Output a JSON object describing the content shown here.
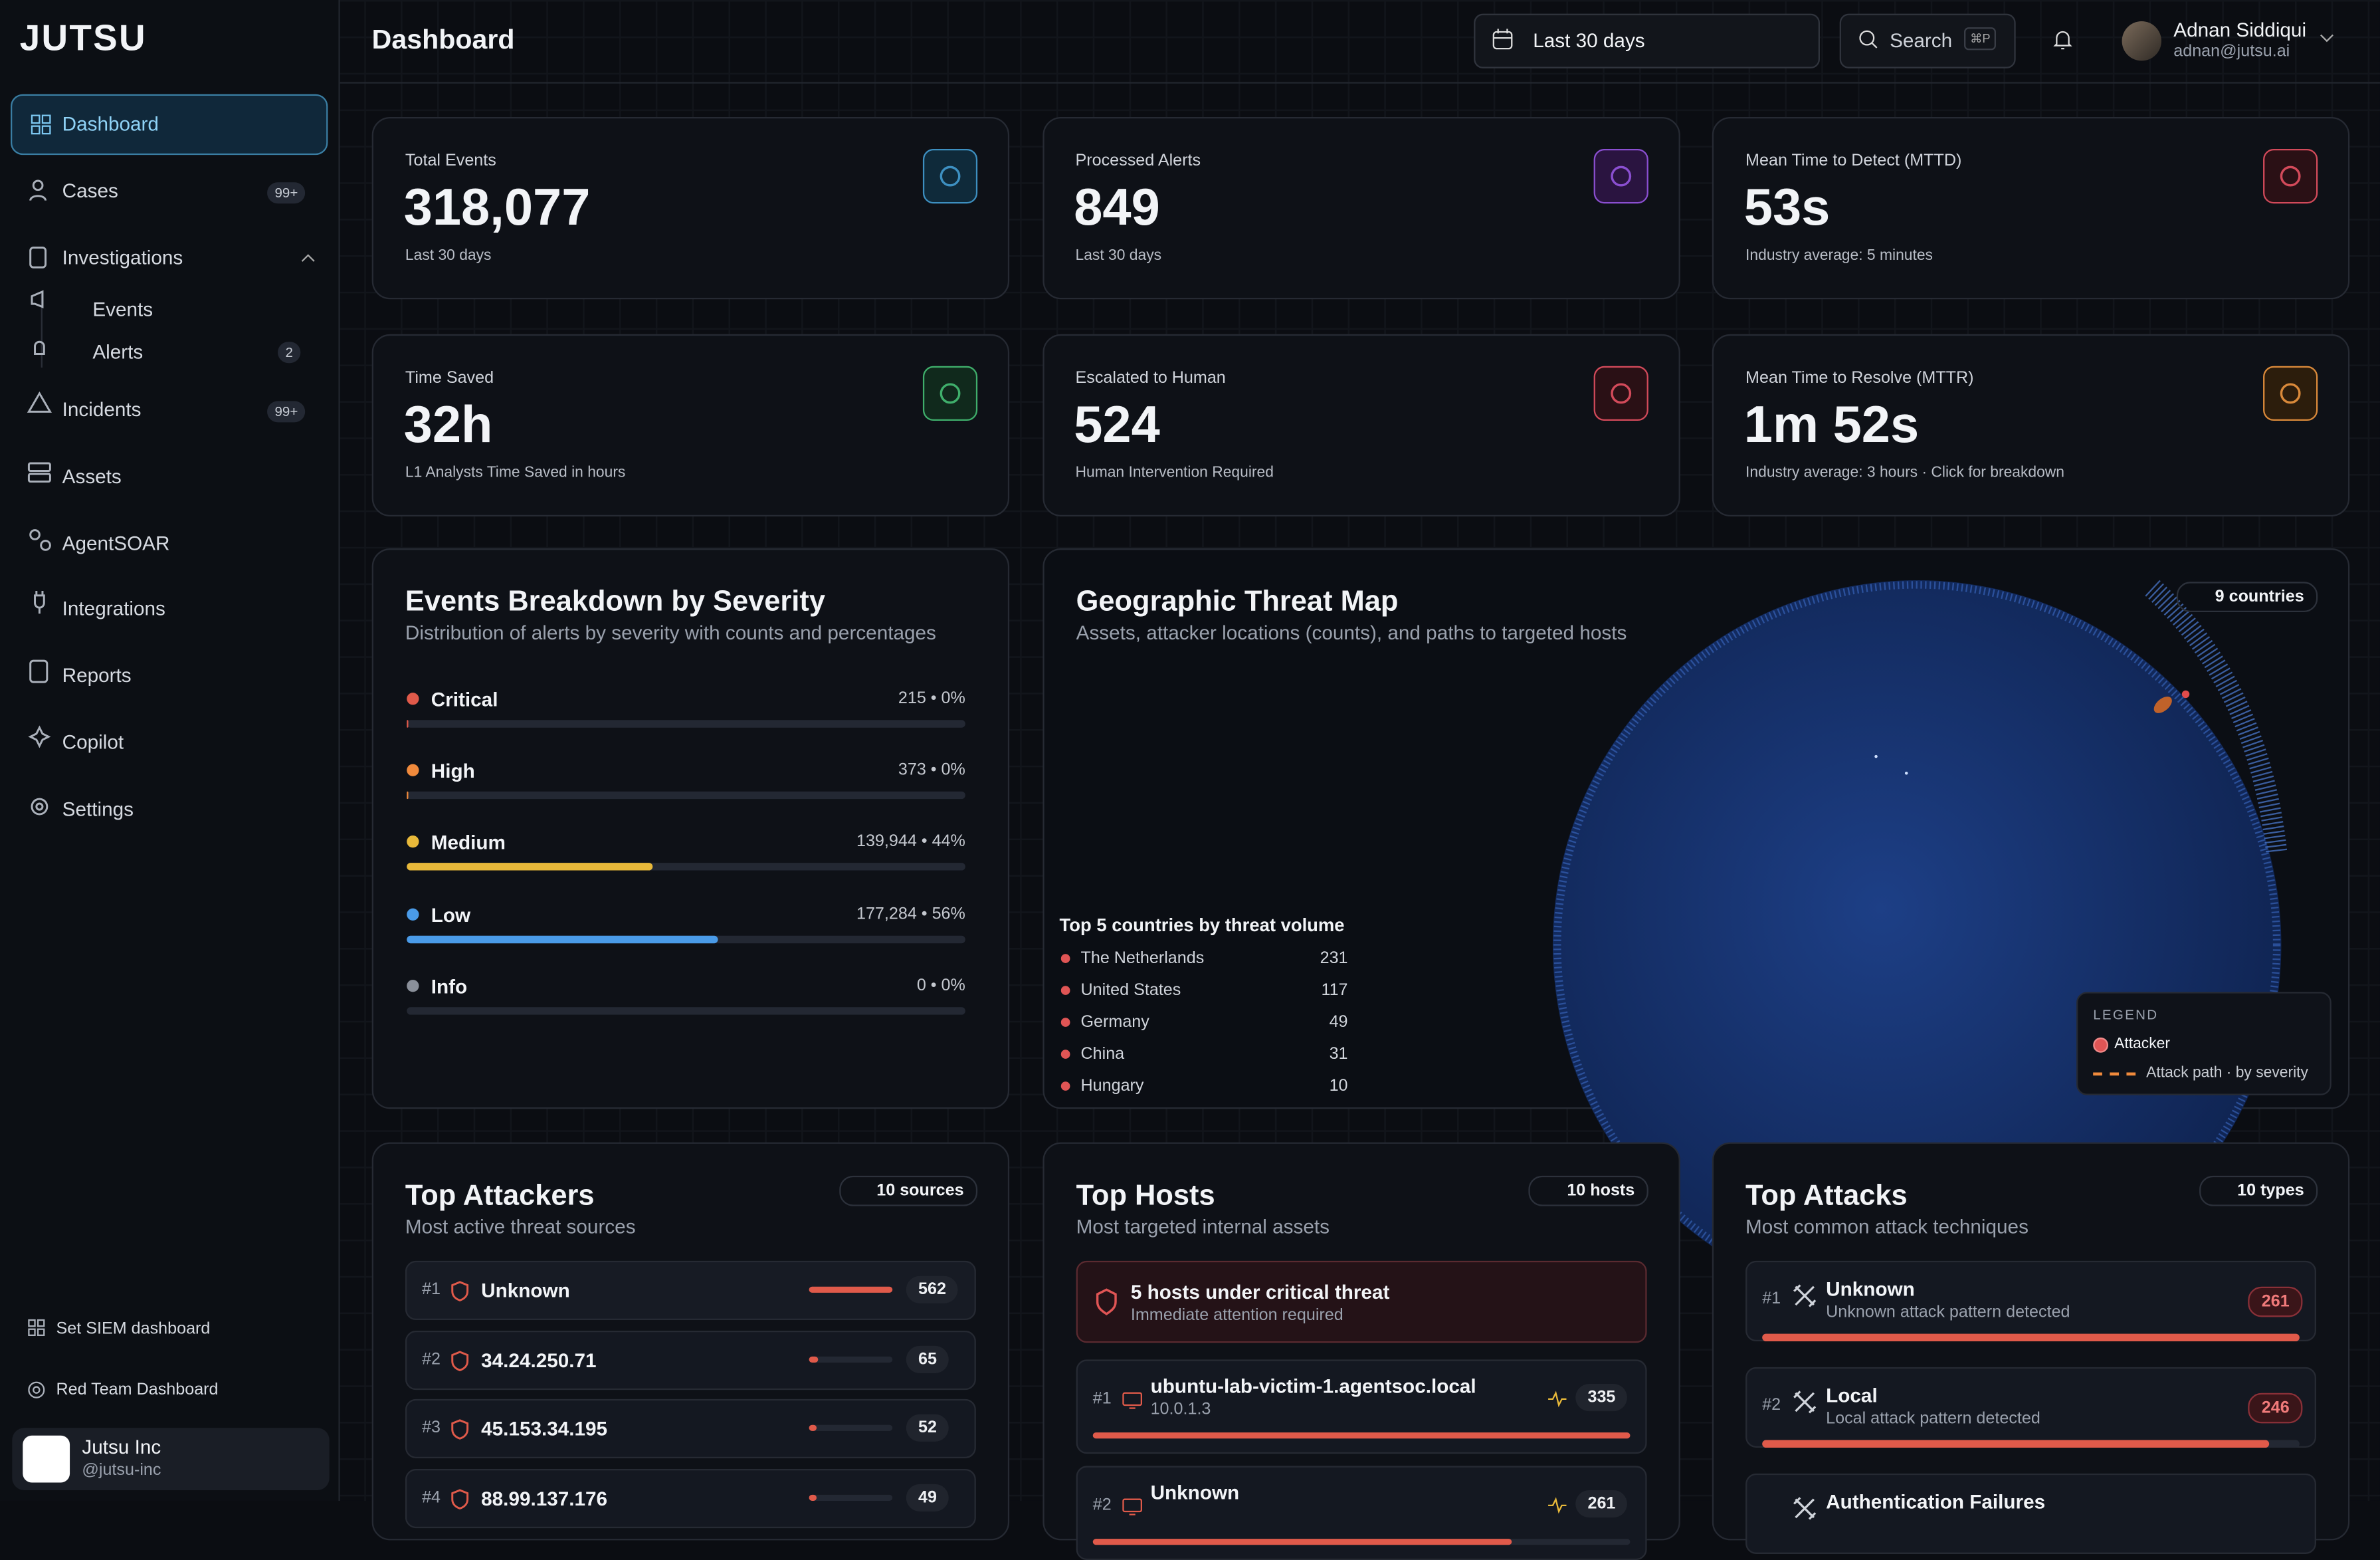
{
  "brand": "JUTSU",
  "header": {
    "title": "Dashboard",
    "date_range": "Last 30 days",
    "search": "Search",
    "shortcut": "⌘P",
    "user": {
      "name": "Adnan Siddiqui",
      "email": "adnan@jutsu.ai"
    }
  },
  "nav": [
    {
      "label": "Dashboard"
    },
    {
      "label": "Cases",
      "badge": "99+"
    },
    {
      "label": "Investigations",
      "children": [
        {
          "label": "Events"
        },
        {
          "label": "Alerts",
          "badge": 2
        }
      ]
    },
    {
      "label": "Incidents",
      "badge": "99+"
    },
    {
      "label": "Assets"
    },
    {
      "label": "AgentSOAR"
    },
    {
      "label": "Integrations"
    },
    {
      "label": "Reports"
    },
    {
      "label": "Copilot"
    },
    {
      "label": "Settings"
    }
  ],
  "sidebar_footer": {
    "links": [
      "Set SIEM dashboard",
      "Red Team Dashboard"
    ],
    "org": {
      "name": "Jutsu Inc",
      "handle": "@jutsu-inc"
    }
  },
  "stats": [
    {
      "label": "Total Events",
      "value": "318,077",
      "note": "Last 30 days"
    },
    {
      "label": "Processed Alerts",
      "value": "849",
      "note": "Last 30 days"
    },
    {
      "label": "Mean Time to Detect (MTTD)",
      "value": "53s",
      "note": "Industry average: 5 minutes"
    },
    {
      "label": "Time Saved",
      "value": "32h",
      "note": "L1 Analysts Time Saved in hours"
    },
    {
      "label": "Escalated to Human",
      "value": "524",
      "note": "Human Intervention Required"
    },
    {
      "label": "Mean Time to Resolve (MTTR)",
      "value": "1m 52s",
      "note": "Industry average: 3 hours · Click for breakdown"
    }
  ],
  "severity": {
    "title": "Events Breakdown by Severity",
    "subtitle": "Distribution of alerts by severity with counts and percentages",
    "items": [
      {
        "name": "Critical",
        "count": 215,
        "label": "215 • 0%"
      },
      {
        "name": "High",
        "count": 373,
        "label": "373 • 0%"
      },
      {
        "name": "Medium",
        "count": 139944,
        "label": "139,944 • 44%"
      },
      {
        "name": "Low",
        "count": 177284,
        "label": "177,284 • 56%"
      },
      {
        "name": "Info",
        "count": 0,
        "label": "0 • 0%"
      }
    ]
  },
  "map": {
    "title": "Geographic Threat Map",
    "subtitle": "Assets, attacker locations (counts), and paths to targeted hosts",
    "badge": "9 countries",
    "top_title": "Top 5 countries by threat volume",
    "countries": [
      {
        "name": "The Netherlands",
        "count": 231
      },
      {
        "name": "United States",
        "count": 117
      },
      {
        "name": "Germany",
        "count": 49
      },
      {
        "name": "China",
        "count": 31
      },
      {
        "name": "Hungary",
        "count": 10
      }
    ],
    "legend": {
      "title": "LEGEND",
      "items": [
        "Attacker",
        "Attack path · by severity"
      ]
    }
  },
  "attackers": {
    "title": "Top Attackers",
    "subtitle": "Most active threat sources",
    "badge": "10 sources",
    "items": [
      {
        "rank": "#1",
        "name": "Unknown",
        "count": 562
      },
      {
        "rank": "#2",
        "name": "34.24.250.71",
        "count": 65
      },
      {
        "rank": "#3",
        "name": "45.153.34.195",
        "count": 52
      },
      {
        "rank": "#4",
        "name": "88.99.137.176",
        "count": 49
      }
    ]
  },
  "hosts": {
    "title": "Top Hosts",
    "subtitle": "Most targeted internal assets",
    "badge": "10 hosts",
    "alert": {
      "title": "5 hosts under critical threat",
      "note": "Immediate attention required"
    },
    "items": [
      {
        "rank": "#1",
        "name": "ubuntu-lab-victim-1.agentsoc.local",
        "ip": "10.0.1.3",
        "count": 335
      },
      {
        "rank": "#2",
        "name": "Unknown",
        "count": 261
      }
    ]
  },
  "attacks": {
    "title": "Top Attacks",
    "subtitle": "Most common attack techniques",
    "badge": "10 types",
    "items": [
      {
        "rank": "#1",
        "name": "Unknown",
        "desc": "Unknown attack pattern detected",
        "count": 261
      },
      {
        "rank": "#2",
        "name": "Local",
        "desc": "Local attack pattern detected",
        "count": 246
      },
      {
        "name": "Authentication Failures"
      }
    ]
  }
}
